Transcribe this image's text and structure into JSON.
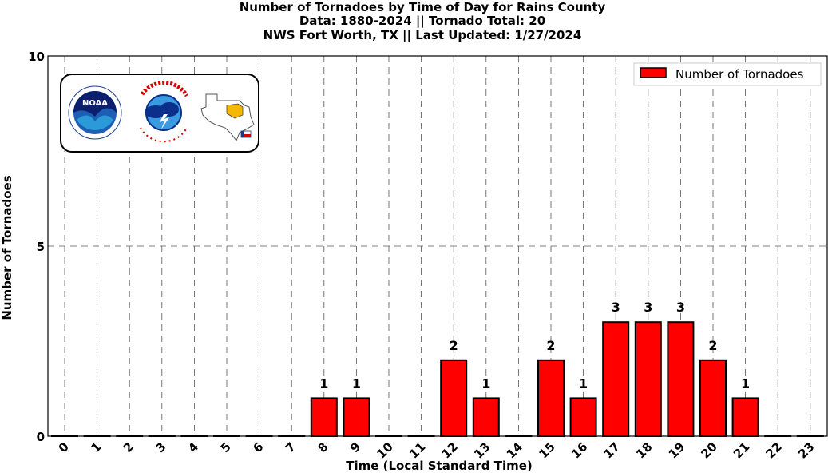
{
  "title_lines": [
    "Number of Tornadoes by Time of Day for Rains County",
    "Data: 1880-2024 || Tornado Total: 20",
    "NWS Fort Worth, TX || Last Updated: 1/27/2024"
  ],
  "colors": {
    "bar": "#ff0000",
    "bar_edge": "#000000",
    "grid": "#555555"
  },
  "logos": {
    "noaa_text": "NOAA",
    "nws_text": "NATIONAL WEATHER SERVICE"
  },
  "chart_data": {
    "type": "bar",
    "categories": [
      "0",
      "1",
      "2",
      "3",
      "4",
      "5",
      "6",
      "7",
      "8",
      "9",
      "10",
      "11",
      "12",
      "13",
      "14",
      "15",
      "16",
      "17",
      "18",
      "19",
      "20",
      "21",
      "22",
      "23"
    ],
    "series": [
      {
        "name": "Number of Tornadoes",
        "values": [
          0,
          0,
          0,
          0,
          0,
          0,
          0,
          0,
          1,
          1,
          0,
          0,
          2,
          1,
          0,
          2,
          1,
          3,
          3,
          3,
          2,
          1,
          0,
          0
        ]
      }
    ],
    "xlabel": "Time (Local Standard Time)",
    "ylabel": "Number of Tornadoes",
    "ylim": [
      0,
      10
    ],
    "yticks": [
      0,
      5,
      10
    ],
    "grid": true,
    "legend_position": "top-right",
    "data_labels": "shown for non-zero bars"
  }
}
